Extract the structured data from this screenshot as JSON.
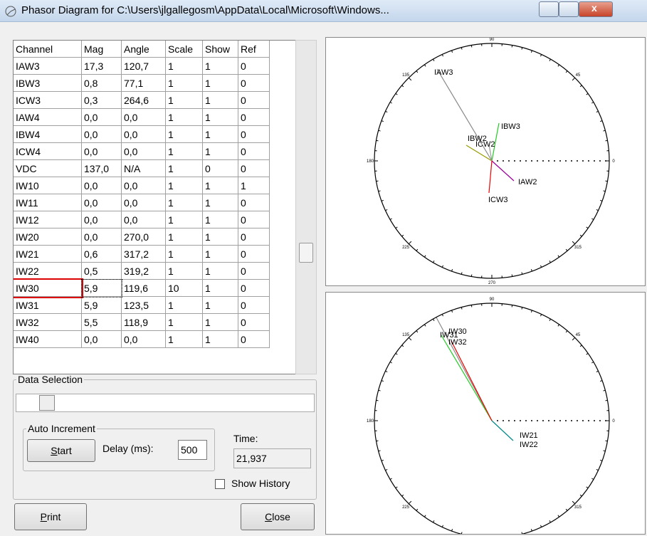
{
  "window": {
    "title": "Phasor Diagram for C:\\Users\\jlgallegosm\\AppData\\Local\\Microsoft\\Windows..."
  },
  "table": {
    "columns": [
      "Channel",
      "Mag",
      "Angle",
      "Scale",
      "Show",
      "Ref"
    ],
    "rows": [
      [
        "IAW3",
        "17,3",
        "120,7",
        "1",
        "1",
        "0"
      ],
      [
        "IBW3",
        "0,8",
        "77,1",
        "1",
        "1",
        "0"
      ],
      [
        "ICW3",
        "0,3",
        "264,6",
        "1",
        "1",
        "0"
      ],
      [
        "IAW4",
        "0,0",
        "0,0",
        "1",
        "1",
        "0"
      ],
      [
        "IBW4",
        "0,0",
        "0,0",
        "1",
        "1",
        "0"
      ],
      [
        "ICW4",
        "0,0",
        "0,0",
        "1",
        "1",
        "0"
      ],
      [
        "VDC",
        "137,0",
        "N/A",
        "1",
        "0",
        "0"
      ],
      [
        "IW10",
        "0,0",
        "0,0",
        "1",
        "1",
        "1"
      ],
      [
        "IW11",
        "0,0",
        "0,0",
        "1",
        "1",
        "0"
      ],
      [
        "IW12",
        "0,0",
        "0,0",
        "1",
        "1",
        "0"
      ],
      [
        "IW20",
        "0,0",
        "270,0",
        "1",
        "1",
        "0"
      ],
      [
        "IW21",
        "0,6",
        "317,2",
        "1",
        "1",
        "0"
      ],
      [
        "IW22",
        "0,5",
        "319,2",
        "1",
        "1",
        "0"
      ],
      [
        "IW30",
        "5,9",
        "119,6",
        "10",
        "1",
        "0"
      ],
      [
        "IW31",
        "5,9",
        "123,5",
        "1",
        "1",
        "0"
      ],
      [
        "IW32",
        "5,5",
        "118,9",
        "1",
        "1",
        "0"
      ],
      [
        "IW40",
        "0,0",
        "0,0",
        "1",
        "1",
        "0"
      ]
    ]
  },
  "data_selection": {
    "label": "Data Selection"
  },
  "auto_increment": {
    "label": "Auto Increment",
    "start": "Start",
    "delay_label": "Delay (ms):",
    "delay": "500"
  },
  "time": {
    "label": "Time:",
    "value": "21,937"
  },
  "show_history": "Show History",
  "buttons": {
    "print": "Print",
    "close": "Close"
  },
  "diagrams": [
    {
      "angles": [
        "90",
        "45",
        "0",
        "315",
        "270",
        "225",
        "180",
        "135"
      ],
      "phasors": [
        "IAW3",
        "IBW3",
        "IBW2",
        "ICW2",
        "IAW2",
        "ICW3"
      ]
    },
    {
      "angles": [
        "90",
        "45",
        "0",
        "315",
        "225",
        "180",
        "135"
      ],
      "phasors": [
        "IW31",
        "IW30",
        "IW32",
        "IW21",
        "IW22"
      ]
    }
  ]
}
